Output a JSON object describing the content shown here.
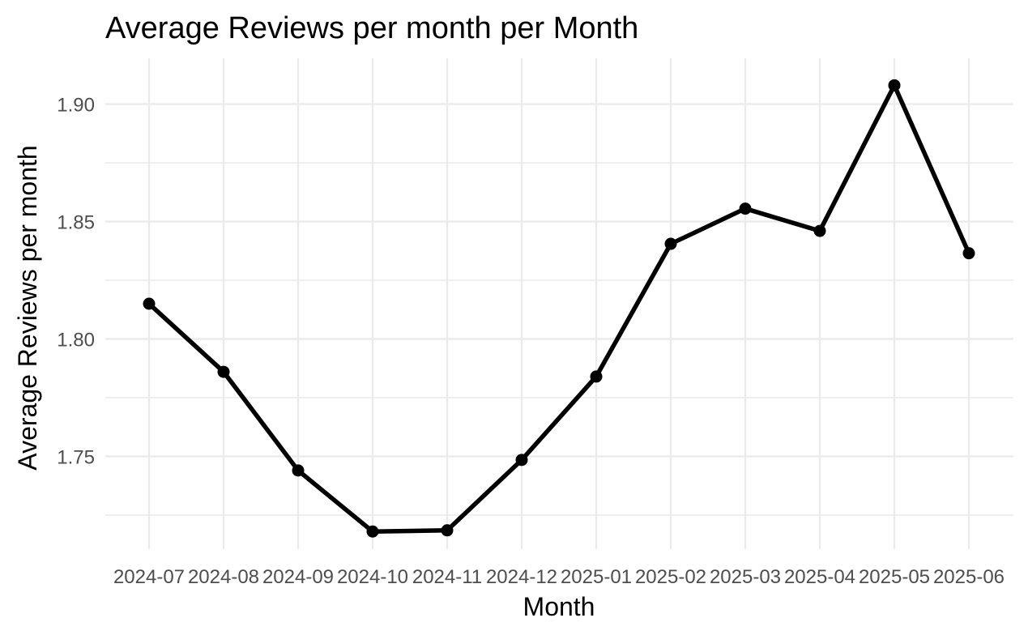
{
  "chart_data": {
    "type": "line",
    "title": "Average Reviews per month per Month",
    "xlabel": "Month",
    "ylabel": "Average Reviews per month",
    "x": [
      "2024-07",
      "2024-08",
      "2024-09",
      "2024-10",
      "2024-11",
      "2024-12",
      "2025-01",
      "2025-02",
      "2025-03",
      "2025-04",
      "2025-05",
      "2025-06"
    ],
    "y_ticks": [
      "1.75",
      "1.80",
      "1.85",
      "1.90"
    ],
    "ylim": [
      1.7105,
      1.9195
    ],
    "grid": true,
    "legend": "none",
    "series": [
      {
        "values": [
          1.815,
          1.786,
          1.744,
          1.718,
          1.7185,
          1.7485,
          1.784,
          1.8405,
          1.8555,
          1.846,
          1.908,
          1.8365
        ]
      }
    ],
    "colors": {
      "line": "#000000",
      "grid": "#ebebeb",
      "tick_text": "#4d4d4d"
    }
  }
}
